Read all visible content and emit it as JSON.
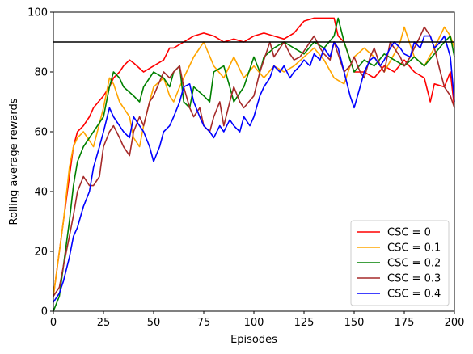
{
  "chart_data": {
    "type": "line",
    "xlabel": "Episodes",
    "ylabel": "Rolling average rewards",
    "xlim": [
      0,
      200
    ],
    "ylim": [
      0,
      100
    ],
    "x_ticks": [
      0,
      25,
      50,
      75,
      100,
      125,
      150,
      175,
      200
    ],
    "y_ticks": [
      0,
      20,
      40,
      60,
      80,
      100
    ],
    "grid": false,
    "legend_position": "lower-right",
    "reference_line": {
      "y": 90,
      "color": "#000000"
    },
    "series": [
      {
        "name": "CSC = 0",
        "color": "#ff0000",
        "points": [
          [
            0,
            5
          ],
          [
            5,
            30
          ],
          [
            8,
            45
          ],
          [
            10,
            55
          ],
          [
            12,
            60
          ],
          [
            15,
            62
          ],
          [
            18,
            65
          ],
          [
            20,
            68
          ],
          [
            25,
            72
          ],
          [
            28,
            75
          ],
          [
            30,
            78
          ],
          [
            33,
            80
          ],
          [
            35,
            82
          ],
          [
            38,
            84
          ],
          [
            40,
            83
          ],
          [
            45,
            80
          ],
          [
            50,
            82
          ],
          [
            55,
            84
          ],
          [
            58,
            88
          ],
          [
            60,
            88
          ],
          [
            65,
            90
          ],
          [
            70,
            92
          ],
          [
            75,
            93
          ],
          [
            80,
            92
          ],
          [
            85,
            90
          ],
          [
            90,
            91
          ],
          [
            95,
            90
          ],
          [
            100,
            92
          ],
          [
            105,
            93
          ],
          [
            110,
            92
          ],
          [
            115,
            91
          ],
          [
            120,
            93
          ],
          [
            125,
            97
          ],
          [
            130,
            98
          ],
          [
            135,
            98
          ],
          [
            140,
            98
          ],
          [
            142,
            92
          ],
          [
            145,
            90
          ],
          [
            150,
            80
          ],
          [
            155,
            80
          ],
          [
            160,
            78
          ],
          [
            165,
            82
          ],
          [
            170,
            80
          ],
          [
            175,
            84
          ],
          [
            180,
            80
          ],
          [
            185,
            78
          ],
          [
            188,
            70
          ],
          [
            190,
            76
          ],
          [
            195,
            75
          ],
          [
            198,
            80
          ],
          [
            200,
            68
          ]
        ]
      },
      {
        "name": "CSC = 0.1",
        "color": "#ffa500",
        "points": [
          [
            0,
            5
          ],
          [
            5,
            30
          ],
          [
            8,
            48
          ],
          [
            10,
            55
          ],
          [
            12,
            58
          ],
          [
            15,
            60
          ],
          [
            18,
            57
          ],
          [
            20,
            55
          ],
          [
            25,
            68
          ],
          [
            28,
            78
          ],
          [
            30,
            76
          ],
          [
            33,
            70
          ],
          [
            35,
            68
          ],
          [
            38,
            65
          ],
          [
            40,
            58
          ],
          [
            43,
            55
          ],
          [
            45,
            62
          ],
          [
            48,
            70
          ],
          [
            50,
            75
          ],
          [
            55,
            78
          ],
          [
            58,
            72
          ],
          [
            60,
            70
          ],
          [
            63,
            75
          ],
          [
            65,
            78
          ],
          [
            70,
            85
          ],
          [
            75,
            90
          ],
          [
            80,
            82
          ],
          [
            85,
            78
          ],
          [
            90,
            85
          ],
          [
            95,
            78
          ],
          [
            100,
            82
          ],
          [
            105,
            78
          ],
          [
            110,
            82
          ],
          [
            115,
            80
          ],
          [
            120,
            82
          ],
          [
            125,
            85
          ],
          [
            130,
            88
          ],
          [
            135,
            84
          ],
          [
            140,
            78
          ],
          [
            145,
            76
          ],
          [
            148,
            82
          ],
          [
            150,
            85
          ],
          [
            155,
            88
          ],
          [
            160,
            85
          ],
          [
            165,
            80
          ],
          [
            170,
            86
          ],
          [
            173,
            90
          ],
          [
            175,
            95
          ],
          [
            180,
            85
          ],
          [
            185,
            82
          ],
          [
            190,
            88
          ],
          [
            195,
            95
          ],
          [
            198,
            92
          ],
          [
            200,
            88
          ]
        ]
      },
      {
        "name": "CSC = 0.2",
        "color": "#008000",
        "points": [
          [
            0,
            0
          ],
          [
            3,
            5
          ],
          [
            5,
            15
          ],
          [
            8,
            30
          ],
          [
            10,
            42
          ],
          [
            12,
            50
          ],
          [
            15,
            55
          ],
          [
            18,
            58
          ],
          [
            20,
            60
          ],
          [
            25,
            65
          ],
          [
            28,
            75
          ],
          [
            30,
            80
          ],
          [
            33,
            78
          ],
          [
            35,
            75
          ],
          [
            40,
            72
          ],
          [
            43,
            70
          ],
          [
            45,
            75
          ],
          [
            50,
            80
          ],
          [
            55,
            78
          ],
          [
            58,
            75
          ],
          [
            60,
            80
          ],
          [
            63,
            82
          ],
          [
            65,
            70
          ],
          [
            68,
            68
          ],
          [
            70,
            75
          ],
          [
            75,
            72
          ],
          [
            78,
            70
          ],
          [
            80,
            80
          ],
          [
            85,
            82
          ],
          [
            88,
            75
          ],
          [
            90,
            70
          ],
          [
            95,
            75
          ],
          [
            100,
            85
          ],
          [
            103,
            80
          ],
          [
            105,
            85
          ],
          [
            110,
            88
          ],
          [
            115,
            90
          ],
          [
            120,
            88
          ],
          [
            125,
            86
          ],
          [
            130,
            90
          ],
          [
            135,
            88
          ],
          [
            140,
            92
          ],
          [
            142,
            98
          ],
          [
            145,
            90
          ],
          [
            148,
            84
          ],
          [
            150,
            80
          ],
          [
            155,
            84
          ],
          [
            160,
            82
          ],
          [
            165,
            86
          ],
          [
            170,
            84
          ],
          [
            175,
            82
          ],
          [
            180,
            85
          ],
          [
            185,
            82
          ],
          [
            190,
            86
          ],
          [
            195,
            90
          ],
          [
            198,
            92
          ],
          [
            200,
            85
          ]
        ]
      },
      {
        "name": "CSC = 0.3",
        "color": "#a52a2a",
        "points": [
          [
            0,
            5
          ],
          [
            3,
            8
          ],
          [
            5,
            15
          ],
          [
            8,
            25
          ],
          [
            10,
            32
          ],
          [
            12,
            40
          ],
          [
            15,
            45
          ],
          [
            18,
            42
          ],
          [
            20,
            42
          ],
          [
            23,
            45
          ],
          [
            25,
            55
          ],
          [
            28,
            60
          ],
          [
            30,
            62
          ],
          [
            33,
            58
          ],
          [
            35,
            55
          ],
          [
            38,
            52
          ],
          [
            40,
            60
          ],
          [
            43,
            65
          ],
          [
            45,
            62
          ],
          [
            48,
            70
          ],
          [
            50,
            72
          ],
          [
            55,
            80
          ],
          [
            58,
            78
          ],
          [
            60,
            80
          ],
          [
            63,
            82
          ],
          [
            65,
            75
          ],
          [
            68,
            68
          ],
          [
            70,
            65
          ],
          [
            73,
            68
          ],
          [
            75,
            62
          ],
          [
            78,
            60
          ],
          [
            80,
            65
          ],
          [
            83,
            70
          ],
          [
            85,
            62
          ],
          [
            88,
            70
          ],
          [
            90,
            75
          ],
          [
            93,
            70
          ],
          [
            95,
            68
          ],
          [
            100,
            72
          ],
          [
            103,
            80
          ],
          [
            105,
            84
          ],
          [
            108,
            90
          ],
          [
            110,
            85
          ],
          [
            113,
            88
          ],
          [
            115,
            90
          ],
          [
            118,
            86
          ],
          [
            120,
            84
          ],
          [
            123,
            85
          ],
          [
            125,
            87
          ],
          [
            128,
            90
          ],
          [
            130,
            92
          ],
          [
            133,
            88
          ],
          [
            135,
            86
          ],
          [
            138,
            84
          ],
          [
            140,
            90
          ],
          [
            143,
            84
          ],
          [
            145,
            80
          ],
          [
            148,
            82
          ],
          [
            150,
            85
          ],
          [
            153,
            80
          ],
          [
            155,
            78
          ],
          [
            158,
            85
          ],
          [
            160,
            88
          ],
          [
            163,
            82
          ],
          [
            165,
            80
          ],
          [
            168,
            90
          ],
          [
            170,
            88
          ],
          [
            173,
            85
          ],
          [
            175,
            82
          ],
          [
            178,
            85
          ],
          [
            180,
            88
          ],
          [
            183,
            92
          ],
          [
            185,
            95
          ],
          [
            188,
            92
          ],
          [
            190,
            88
          ],
          [
            193,
            80
          ],
          [
            195,
            75
          ],
          [
            198,
            72
          ],
          [
            200,
            68
          ]
        ]
      },
      {
        "name": "CSC = 0.4",
        "color": "#0000ff",
        "points": [
          [
            0,
            3
          ],
          [
            3,
            6
          ],
          [
            5,
            10
          ],
          [
            8,
            18
          ],
          [
            10,
            25
          ],
          [
            12,
            28
          ],
          [
            15,
            35
          ],
          [
            18,
            40
          ],
          [
            20,
            48
          ],
          [
            23,
            55
          ],
          [
            25,
            60
          ],
          [
            28,
            68
          ],
          [
            30,
            65
          ],
          [
            33,
            62
          ],
          [
            35,
            60
          ],
          [
            38,
            58
          ],
          [
            40,
            65
          ],
          [
            43,
            62
          ],
          [
            45,
            60
          ],
          [
            48,
            55
          ],
          [
            50,
            50
          ],
          [
            53,
            55
          ],
          [
            55,
            60
          ],
          [
            58,
            62
          ],
          [
            60,
            65
          ],
          [
            63,
            70
          ],
          [
            65,
            75
          ],
          [
            68,
            76
          ],
          [
            70,
            70
          ],
          [
            73,
            65
          ],
          [
            75,
            62
          ],
          [
            78,
            60
          ],
          [
            80,
            58
          ],
          [
            83,
            62
          ],
          [
            85,
            60
          ],
          [
            88,
            64
          ],
          [
            90,
            62
          ],
          [
            93,
            60
          ],
          [
            95,
            65
          ],
          [
            98,
            62
          ],
          [
            100,
            65
          ],
          [
            103,
            72
          ],
          [
            105,
            75
          ],
          [
            108,
            78
          ],
          [
            110,
            82
          ],
          [
            113,
            80
          ],
          [
            115,
            82
          ],
          [
            118,
            78
          ],
          [
            120,
            80
          ],
          [
            123,
            82
          ],
          [
            125,
            84
          ],
          [
            128,
            82
          ],
          [
            130,
            86
          ],
          [
            133,
            84
          ],
          [
            135,
            88
          ],
          [
            138,
            85
          ],
          [
            140,
            90
          ],
          [
            142,
            88
          ],
          [
            145,
            80
          ],
          [
            148,
            72
          ],
          [
            150,
            68
          ],
          [
            153,
            75
          ],
          [
            155,
            80
          ],
          [
            158,
            84
          ],
          [
            160,
            85
          ],
          [
            163,
            82
          ],
          [
            165,
            84
          ],
          [
            168,
            88
          ],
          [
            170,
            90
          ],
          [
            173,
            88
          ],
          [
            175,
            86
          ],
          [
            178,
            85
          ],
          [
            180,
            90
          ],
          [
            183,
            88
          ],
          [
            185,
            92
          ],
          [
            188,
            92
          ],
          [
            190,
            88
          ],
          [
            193,
            90
          ],
          [
            195,
            92
          ],
          [
            198,
            85
          ],
          [
            200,
            70
          ]
        ]
      }
    ]
  }
}
